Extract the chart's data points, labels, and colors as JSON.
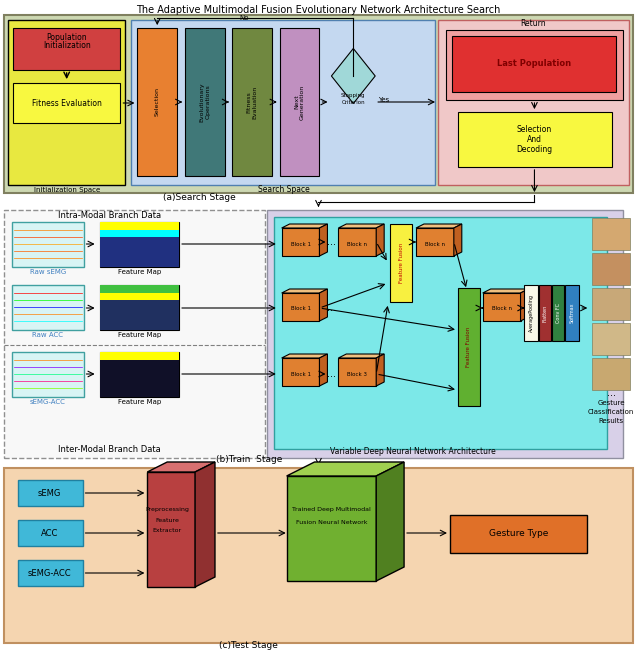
{
  "title": "The Adaptive Multimodal Fusion Evolutionary Network Architecture Search",
  "fig_width": 6.4,
  "fig_height": 6.53,
  "bg_color": "#ffffff",
  "section_a_label": "(a)Search Stage",
  "section_b_label": "(b)Train  Stage",
  "section_c_label": "(c)Test Stage"
}
